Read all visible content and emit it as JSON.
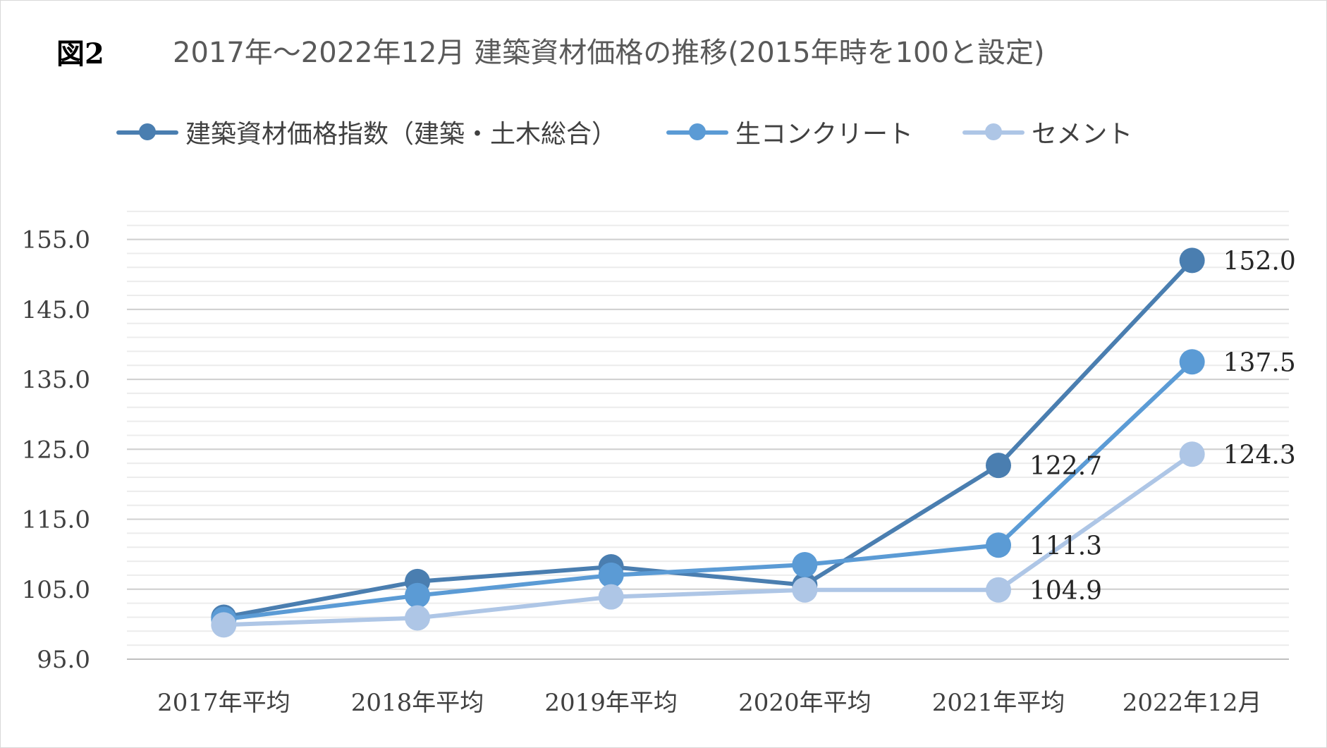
{
  "figure_label": "図2",
  "chart_data": {
    "type": "line",
    "title": "2017年～2022年12月 建築資材価格の推移(2015年時を100と設定)",
    "categories": [
      "2017年平均",
      "2018年平均",
      "2019年平均",
      "2020年平均",
      "2021年平均",
      "2022年12月"
    ],
    "ylim": [
      95,
      160
    ],
    "yticks": [
      95,
      105,
      115,
      125,
      135,
      145,
      155
    ],
    "ytick_labels": [
      "95.0",
      "105.0",
      "115.0",
      "125.0",
      "135.0",
      "145.0",
      "155.0"
    ],
    "grid": true,
    "minor_grid": true,
    "legend_position": "top",
    "series": [
      {
        "name": "建築資材価格指数（建築・土木総合）",
        "color": "#4a7eb0",
        "values": [
          101.0,
          106.1,
          108.2,
          105.6,
          122.7,
          152.0
        ],
        "data_labels": [
          null,
          null,
          null,
          null,
          "122.7",
          "152.0"
        ]
      },
      {
        "name": "生コンクリート",
        "color": "#5b9bd5",
        "values": [
          100.7,
          104.1,
          107.0,
          108.5,
          111.3,
          137.5
        ],
        "data_labels": [
          null,
          null,
          null,
          null,
          "111.3",
          "137.5"
        ]
      },
      {
        "name": "セメント",
        "color": "#aec6e6",
        "values": [
          99.9,
          100.9,
          103.9,
          104.9,
          104.9,
          124.3
        ],
        "data_labels": [
          null,
          null,
          null,
          null,
          "104.9",
          "124.3"
        ]
      }
    ]
  }
}
